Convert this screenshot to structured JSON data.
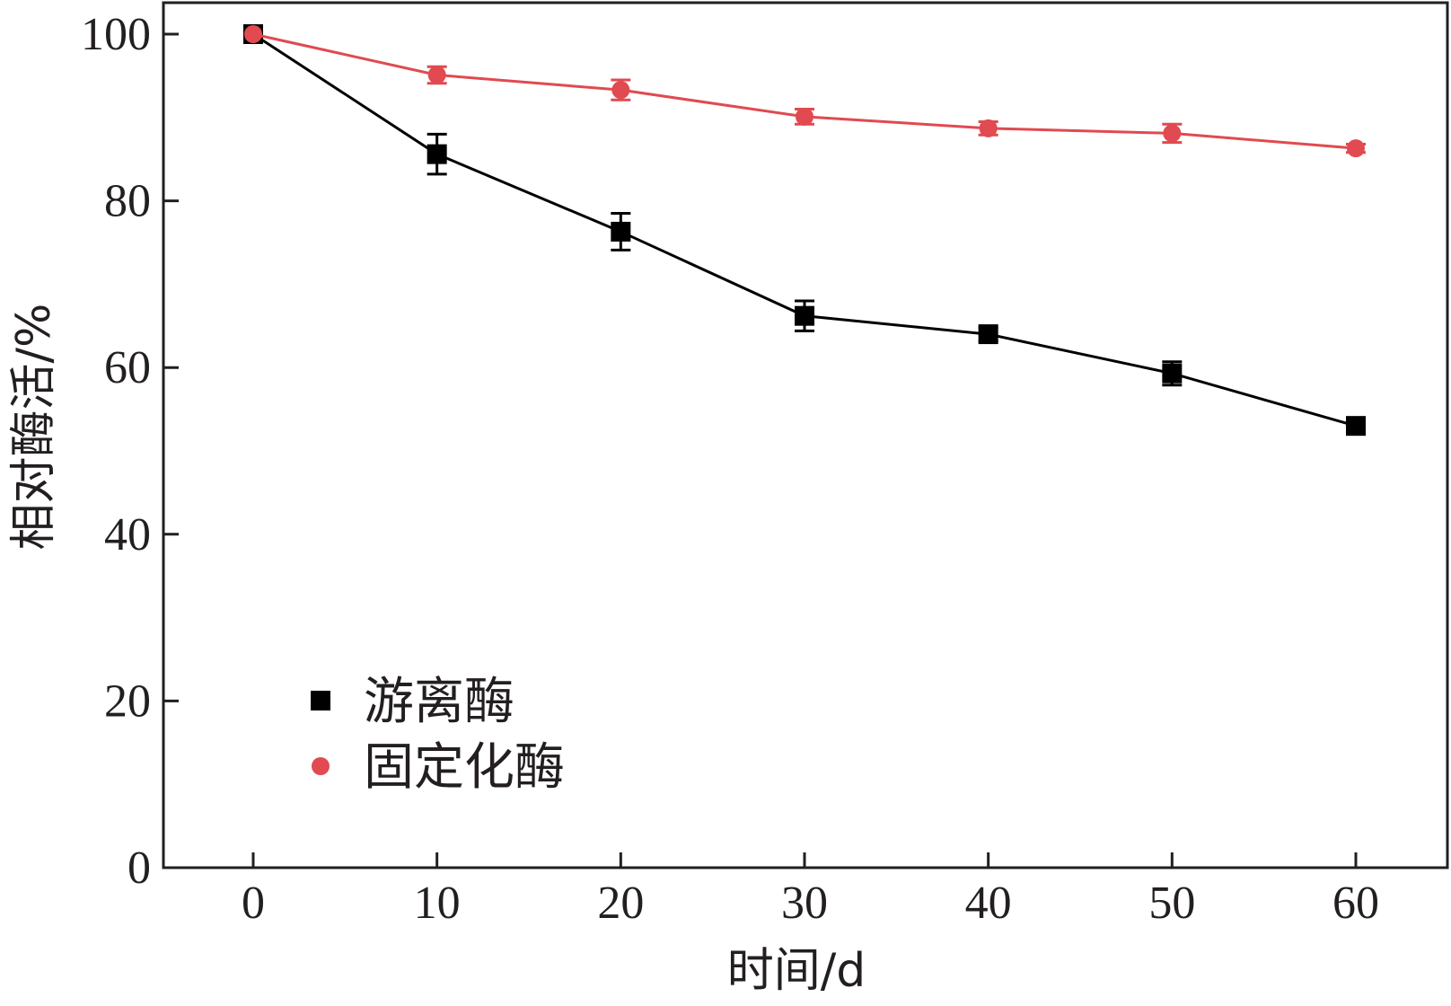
{
  "chart_data": {
    "type": "line",
    "title": "",
    "xlabel": "时间/d",
    "ylabel": "相对酶活/%",
    "x": [
      0,
      10,
      20,
      30,
      40,
      50,
      60
    ],
    "xlim": [
      -5,
      65
    ],
    "ylim": [
      0,
      100
    ],
    "xticks": [
      "0",
      "10",
      "20",
      "30",
      "40",
      "50",
      "60"
    ],
    "yticks": [
      "0",
      "20",
      "40",
      "60",
      "80",
      "100"
    ],
    "grid": false,
    "legend_position": "lower-left",
    "series": [
      {
        "name": "游离酶",
        "color": "#000000",
        "marker": "square",
        "values": [
          100,
          85.6,
          76.3,
          66.2,
          64.0,
          59.3,
          53.0
        ],
        "error": [
          0,
          2.4,
          2.2,
          1.8,
          0.8,
          1.4,
          0.7
        ]
      },
      {
        "name": "固定化酶",
        "color": "#e04a50",
        "marker": "circle",
        "values": [
          100,
          95.1,
          93.3,
          90.1,
          88.7,
          88.1,
          86.3
        ],
        "error": [
          0,
          1.0,
          1.2,
          0.9,
          0.8,
          1.1,
          0.5
        ]
      }
    ]
  }
}
